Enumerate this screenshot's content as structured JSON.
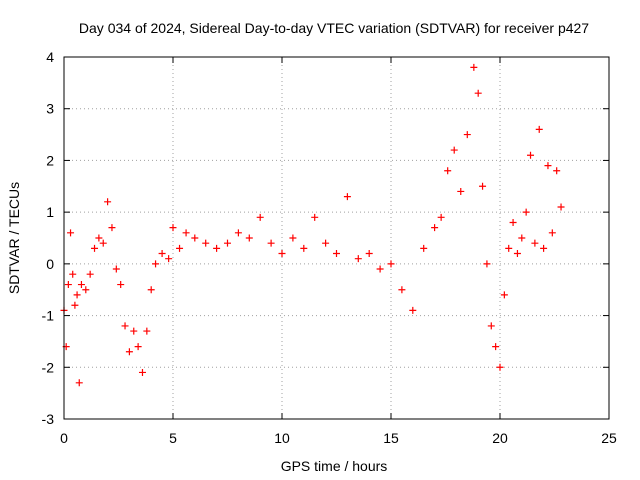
{
  "chart_data": {
    "type": "scatter",
    "title": "Day 034 of 2024, Sidereal Day-to-day VTEC variation (SDTVAR) for receiver p427",
    "xlabel": "GPS time / hours",
    "ylabel": "SDTVAR / TECUs",
    "xlim": [
      0,
      25
    ],
    "ylim": [
      -3,
      4
    ],
    "xticks": [
      0,
      5,
      10,
      15,
      20,
      25
    ],
    "yticks": [
      -3,
      -2,
      -1,
      0,
      1,
      2,
      3,
      4
    ],
    "grid": true,
    "marker": "+",
    "series": [
      {
        "name": "SDTVAR",
        "color": "#ff0000",
        "x": [
          0.0,
          0.1,
          0.2,
          0.3,
          0.4,
          0.5,
          0.6,
          0.7,
          0.8,
          1.0,
          1.2,
          1.4,
          1.6,
          1.8,
          2.0,
          2.2,
          2.4,
          2.6,
          2.8,
          3.0,
          3.2,
          3.4,
          3.6,
          3.8,
          4.0,
          4.2,
          4.5,
          4.8,
          5.0,
          5.3,
          5.6,
          6.0,
          6.5,
          7.0,
          7.5,
          8.0,
          8.5,
          9.0,
          9.5,
          10.0,
          10.5,
          11.0,
          11.5,
          12.0,
          12.5,
          13.0,
          13.5,
          14.0,
          14.5,
          15.0,
          15.5,
          16.0,
          16.5,
          17.0,
          17.3,
          17.6,
          17.9,
          18.2,
          18.5,
          18.8,
          19.0,
          19.2,
          19.4,
          19.6,
          19.8,
          20.0,
          20.2,
          20.4,
          20.6,
          20.8,
          21.0,
          21.2,
          21.4,
          21.6,
          21.8,
          22.0,
          22.2,
          22.4,
          22.6,
          22.8
        ],
        "y": [
          -0.9,
          -1.6,
          -0.4,
          0.6,
          -0.2,
          -0.8,
          -0.6,
          -2.3,
          -0.4,
          -0.5,
          -0.2,
          0.3,
          0.5,
          0.4,
          1.2,
          0.7,
          -0.1,
          -0.4,
          -1.2,
          -1.7,
          -1.3,
          -1.6,
          -2.1,
          -1.3,
          -0.5,
          0.0,
          0.2,
          0.1,
          0.7,
          0.3,
          0.6,
          0.5,
          0.4,
          0.3,
          0.4,
          0.6,
          0.5,
          0.9,
          0.4,
          0.2,
          0.5,
          0.3,
          0.9,
          0.4,
          0.2,
          1.3,
          0.1,
          0.2,
          -0.1,
          0.0,
          -0.5,
          -0.9,
          0.3,
          0.7,
          0.9,
          1.8,
          2.2,
          1.4,
          2.5,
          3.8,
          3.3,
          1.5,
          0.0,
          -1.2,
          -1.6,
          -2.0,
          -0.6,
          0.3,
          0.8,
          0.2,
          0.5,
          1.0,
          2.1,
          0.4,
          2.6,
          0.3,
          1.9,
          0.6,
          1.8,
          1.1
        ]
      }
    ]
  }
}
